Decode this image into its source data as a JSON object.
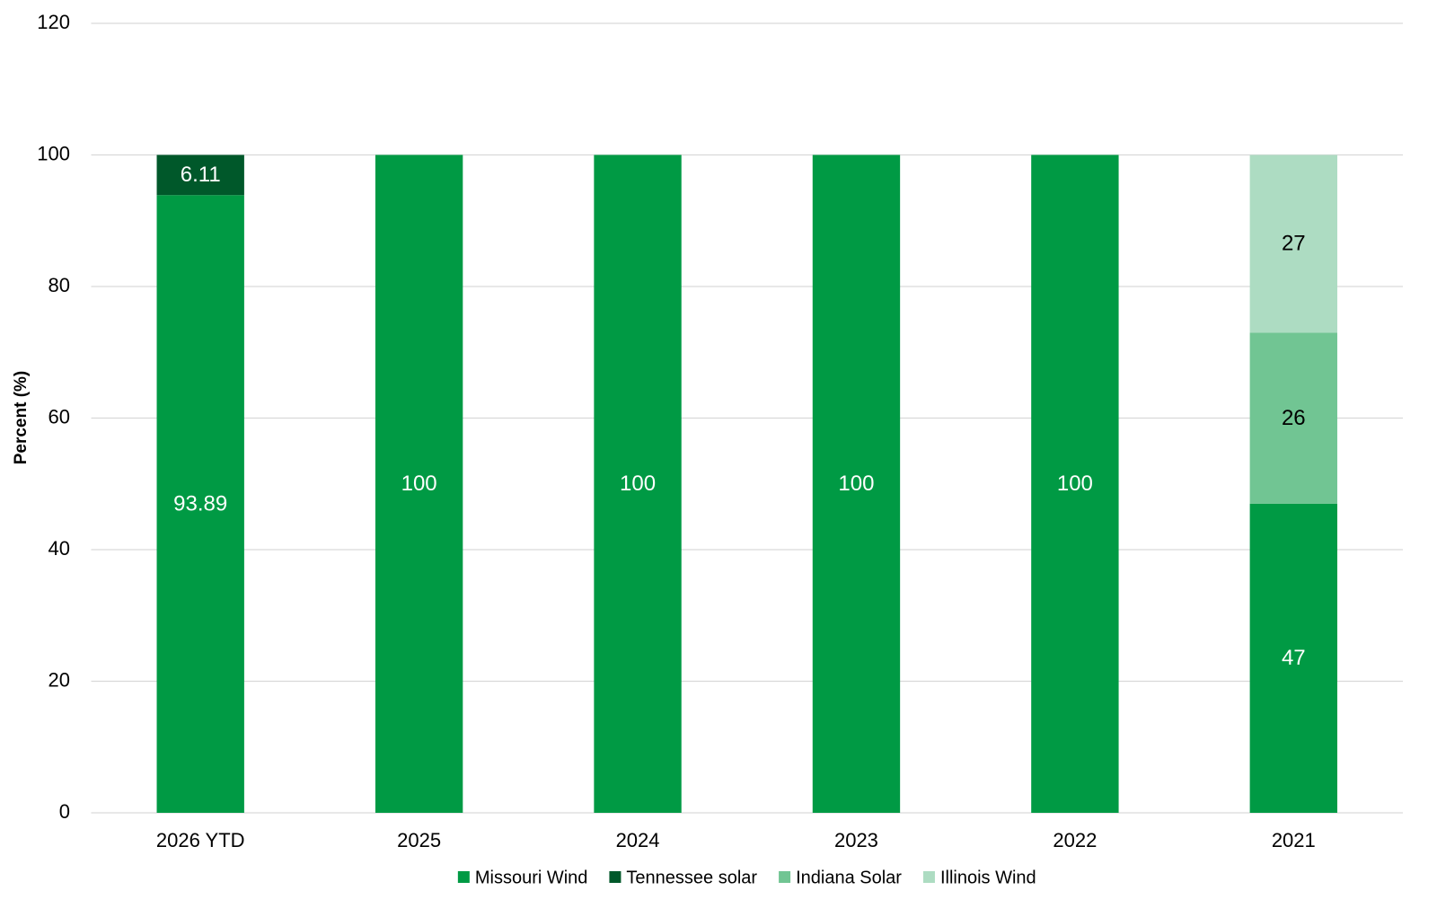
{
  "chart_data": {
    "type": "stacked_bar",
    "y_label": "Percent (%)",
    "categories": [
      "2026 YTD",
      "2025",
      "2024",
      "2023",
      "2022",
      "2021"
    ],
    "series": [
      {
        "name": "Missouri Wind",
        "color": "#009a44",
        "label_color": "#ffffff",
        "values": [
          93.89,
          100,
          100,
          100,
          100,
          47
        ]
      },
      {
        "name": "Tennessee solar",
        "color": "#00582a",
        "label_color": "#ffffff",
        "values": [
          6.11,
          null,
          null,
          null,
          null,
          null
        ]
      },
      {
        "name": "Indiana Solar",
        "color": "#71c593",
        "label_color": "#000000",
        "values": [
          null,
          null,
          null,
          null,
          null,
          26
        ]
      },
      {
        "name": "Illinois Wind",
        "color": "#addcc2",
        "label_color": "#000000",
        "values": [
          null,
          null,
          null,
          null,
          null,
          27
        ]
      }
    ],
    "ylim": [
      0,
      120
    ],
    "yticks": [
      0,
      20,
      40,
      60,
      80,
      100,
      120
    ],
    "grid": true,
    "legend": "bottom"
  }
}
